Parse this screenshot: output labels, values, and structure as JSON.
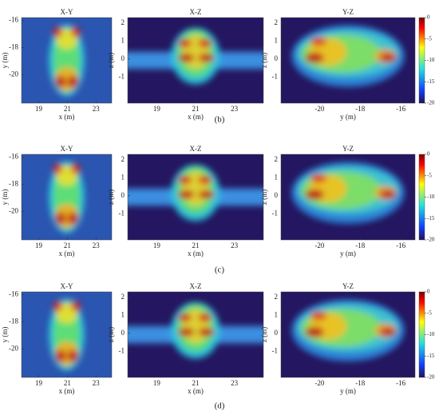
{
  "chart_data": [
    {
      "type": "heatmap-row",
      "caption": "(b)",
      "panels": [
        {
          "type": "xy",
          "title": "X-Y",
          "xlabel": "x (m)",
          "ylabel": "y (m)",
          "xlim": [
            17.8,
            24.1
          ],
          "ylim": [
            -22.1,
            -15.8
          ],
          "xticks": [
            19,
            21,
            23
          ],
          "yticks": [
            -16,
            -18,
            -20
          ]
        },
        {
          "type": "xz",
          "title": "X-Z",
          "xlabel": "x (m)",
          "ylabel": "z (m)",
          "xlim": [
            17.5,
            24.5
          ],
          "ylim": [
            -2.45,
            2.3
          ],
          "xticks": [
            19,
            21,
            23
          ],
          "yticks": [
            2,
            1,
            0,
            -1
          ]
        },
        {
          "type": "yz",
          "title": "Y-Z",
          "xlabel": "y (m)",
          "ylabel": "z (m)",
          "xlim": [
            -21.9,
            -15.3
          ],
          "ylim": [
            -2.45,
            2.3
          ],
          "xticks": [
            -20,
            -18,
            -16
          ],
          "yticks": [
            2,
            1,
            0,
            -1
          ]
        }
      ],
      "colorbar": {
        "lim": [
          -20,
          0
        ],
        "ticks": [
          0,
          -5,
          -10,
          -15,
          -20
        ]
      }
    },
    {
      "type": "heatmap-row",
      "caption": "(c)",
      "panels": [
        {
          "type": "xy",
          "title": "X-Y",
          "xlabel": "x (m)",
          "ylabel": "y (m)",
          "xlim": [
            17.8,
            24.1
          ],
          "ylim": [
            -22.1,
            -15.8
          ],
          "xticks": [
            19,
            21,
            23
          ],
          "yticks": [
            -16,
            -18,
            -20
          ]
        },
        {
          "type": "xz",
          "title": "X-Z",
          "xlabel": "x (m)",
          "ylabel": "z (m)",
          "xlim": [
            17.5,
            24.5
          ],
          "ylim": [
            -2.45,
            2.3
          ],
          "xticks": [
            19,
            21,
            23
          ],
          "yticks": [
            2,
            1,
            0,
            -1
          ]
        },
        {
          "type": "yz",
          "title": "Y-Z",
          "xlabel": "y (m)",
          "ylabel": "z (m)",
          "xlim": [
            -21.9,
            -15.3
          ],
          "ylim": [
            -2.45,
            2.3
          ],
          "xticks": [
            -20,
            -18,
            -16
          ],
          "yticks": [
            2,
            1,
            0,
            -1
          ]
        }
      ],
      "colorbar": {
        "lim": [
          -20,
          0
        ],
        "ticks": [
          0,
          -5,
          -10,
          -15,
          -20
        ]
      }
    },
    {
      "type": "heatmap-row",
      "caption": "(d)",
      "panels": [
        {
          "type": "xy",
          "title": "X-Y",
          "xlabel": "x (m)",
          "ylabel": "y (m)",
          "xlim": [
            17.8,
            24.1
          ],
          "ylim": [
            -22.1,
            -15.8
          ],
          "xticks": [
            19,
            21,
            23
          ],
          "yticks": [
            -16,
            -18,
            -20
          ]
        },
        {
          "type": "xz",
          "title": "X-Z",
          "xlabel": "x (m)",
          "ylabel": "z (m)",
          "xlim": [
            17.5,
            24.5
          ],
          "ylim": [
            -2.45,
            2.3
          ],
          "xticks": [
            19,
            21,
            23
          ],
          "yticks": [
            2,
            1,
            0,
            -1
          ]
        },
        {
          "type": "yz",
          "title": "Y-Z",
          "xlabel": "y (m)",
          "ylabel": "z (m)",
          "xlim": [
            -21.9,
            -15.3
          ],
          "ylim": [
            -2.45,
            2.3
          ],
          "xticks": [
            -20,
            -18,
            -16
          ],
          "yticks": [
            2,
            1,
            0,
            -1
          ]
        }
      ],
      "colorbar": {
        "lim": [
          -20,
          0
        ],
        "ticks": [
          0,
          -5,
          -10,
          -15,
          -20
        ]
      }
    }
  ]
}
